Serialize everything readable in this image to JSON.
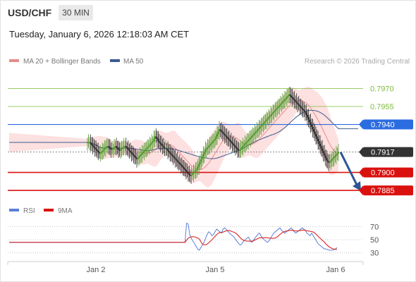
{
  "header": {
    "symbol": "USD/CHF",
    "timeframe": "30 MIN",
    "timestamp": "Tuesday, January 6, 2026 12:18:03 AM CET"
  },
  "credit": "Research © 2026 Trading Central",
  "colors": {
    "green_level": "#7dbb3a",
    "blue_level": "#2b6de0",
    "red_level": "#d9120f",
    "current": "#333333",
    "ma20": "#e98a8a",
    "ma50": "#3a5b8f",
    "bollinger_fill": "#fde0e0",
    "rsi": "#5b7fd6",
    "rsi_ma": "#d9120f",
    "forecast_arrow": "#2d5596",
    "candle_up": "#4f9b2a",
    "candle_down": "#2f2f2f"
  },
  "chart_data": [
    {
      "type": "candlestick",
      "legend": [
        {
          "name": "MA 20 + Bollinger Bands",
          "color": "#e98a8a"
        },
        {
          "name": "MA 50",
          "color": "#3a5b8f"
        }
      ],
      "x_ticks": [
        "Jan 2",
        "Jan 5",
        "Jan 6"
      ],
      "levels": [
        {
          "value": 0.797,
          "label": "0.7970",
          "kind": "resistance-minor",
          "color": "#7dbb3a"
        },
        {
          "value": 0.7955,
          "label": "0.7955",
          "kind": "resistance-minor",
          "color": "#7dbb3a"
        },
        {
          "value": 0.794,
          "label": "0.7940",
          "kind": "resistance",
          "color": "#2b6de0"
        },
        {
          "value": 0.7917,
          "label": "0.7917",
          "kind": "current",
          "color": "#333333"
        },
        {
          "value": 0.79,
          "label": "0.7900",
          "kind": "support",
          "color": "#d9120f"
        },
        {
          "value": 0.7885,
          "label": "0.7885",
          "kind": "support",
          "color": "#d9120f"
        }
      ],
      "ylim": [
        0.7878,
        0.7985
      ],
      "forecast": {
        "from": 0.7917,
        "to": 0.7885,
        "direction": "down"
      },
      "closes": [
        0.7925,
        0.7925,
        0.7925,
        0.7924,
        0.7923,
        0.7922,
        0.7921,
        0.792,
        0.7919,
        0.7918,
        0.7917,
        0.7916,
        0.7916,
        0.7917,
        0.7918,
        0.7919,
        0.792,
        0.7921,
        0.7922,
        0.7922,
        0.7921,
        0.792,
        0.7919,
        0.7919,
        0.792,
        0.7921,
        0.7922,
        0.7921,
        0.792,
        0.7919,
        0.7918,
        0.7919,
        0.792,
        0.7921,
        0.7922,
        0.7922,
        0.7921,
        0.792,
        0.7919,
        0.7918,
        0.7917,
        0.7916,
        0.7915,
        0.7914,
        0.7913,
        0.7912,
        0.7911,
        0.7912,
        0.7913,
        0.7914,
        0.7915,
        0.7916,
        0.7917,
        0.7918,
        0.7919,
        0.792,
        0.7921,
        0.7922,
        0.7923,
        0.7924,
        0.7925,
        0.7926,
        0.7928,
        0.793,
        0.7929,
        0.7928,
        0.7926,
        0.7925,
        0.7924,
        0.7923,
        0.7922,
        0.7921,
        0.792,
        0.792,
        0.7919,
        0.7918,
        0.7917,
        0.7916,
        0.7915,
        0.7914,
        0.7913,
        0.7912,
        0.7911,
        0.791,
        0.7909,
        0.7908,
        0.7907,
        0.7906,
        0.7905,
        0.7904,
        0.7903,
        0.7902,
        0.7901,
        0.79,
        0.7899,
        0.7898,
        0.7897,
        0.7898,
        0.7899,
        0.79,
        0.7901,
        0.7902,
        0.7903,
        0.7905,
        0.7907,
        0.7909,
        0.7911,
        0.7913,
        0.7915,
        0.7917,
        0.7919,
        0.792,
        0.7921,
        0.7922,
        0.7923,
        0.7924,
        0.7925,
        0.7926,
        0.7927,
        0.7928,
        0.793,
        0.7932,
        0.7934,
        0.7936,
        0.7935,
        0.7934,
        0.7933,
        0.7932,
        0.7931,
        0.793,
        0.7929,
        0.7928,
        0.7927,
        0.7926,
        0.7925,
        0.7924,
        0.7923,
        0.7922,
        0.7921,
        0.792,
        0.7919,
        0.7918,
        0.7919,
        0.792,
        0.7921,
        0.7922,
        0.7923,
        0.7924,
        0.7925,
        0.7926,
        0.7927,
        0.7928,
        0.7929,
        0.793,
        0.7931,
        0.7932,
        0.7933,
        0.7934,
        0.7935,
        0.7936,
        0.7937,
        0.7938,
        0.7939,
        0.794,
        0.7941,
        0.7942,
        0.7943,
        0.7944,
        0.7945,
        0.7946,
        0.7947,
        0.7948,
        0.7949,
        0.795,
        0.7951,
        0.7952,
        0.7953,
        0.7954,
        0.7955,
        0.7956,
        0.7957,
        0.7958,
        0.7959,
        0.796,
        0.7961,
        0.7962,
        0.7963,
        0.7964,
        0.7965,
        0.7964,
        0.7963,
        0.7962,
        0.7961,
        0.796,
        0.7959,
        0.7958,
        0.7957,
        0.7956,
        0.7955,
        0.7954,
        0.7953,
        0.7952,
        0.7951,
        0.795,
        0.7948,
        0.7946,
        0.7944,
        0.7942,
        0.794,
        0.7938,
        0.7936,
        0.7934,
        0.7932,
        0.793,
        0.7928,
        0.7926,
        0.7924,
        0.7922,
        0.792,
        0.7918,
        0.7916,
        0.7914,
        0.7912,
        0.791,
        0.7909,
        0.7908,
        0.7909,
        0.791,
        0.7911,
        0.7912,
        0.7913,
        0.7914,
        0.7915,
        0.7916,
        0.7917
      ]
    },
    {
      "type": "line",
      "title": "RSI",
      "legend": [
        {
          "name": "RSI",
          "color": "#5b7fd6"
        },
        {
          "name": "9MA",
          "color": "#d9120f"
        }
      ],
      "y_ticks": [
        70,
        50,
        30
      ],
      "ylim": [
        20,
        80
      ],
      "rsi": [
        46,
        46,
        46,
        46,
        46,
        46,
        46,
        46,
        46,
        46,
        46,
        46,
        46,
        46,
        46,
        46,
        46,
        46,
        46,
        46,
        46,
        46,
        46,
        46,
        46,
        46,
        46,
        46,
        46,
        46,
        46,
        46,
        46,
        46,
        46,
        46,
        46,
        46,
        46,
        46,
        46,
        46,
        46,
        46,
        46,
        46,
        46,
        46,
        46,
        46,
        46,
        46,
        46,
        46,
        46,
        46,
        46,
        46,
        46,
        46,
        46,
        46,
        46,
        46,
        46,
        46,
        46,
        46,
        46,
        46,
        46,
        46,
        46,
        46,
        46,
        46,
        46,
        46,
        46,
        46,
        46,
        46,
        46,
        46,
        46,
        46,
        46,
        46,
        46,
        46,
        46,
        46,
        46,
        46,
        46,
        46,
        46,
        46,
        46,
        46,
        46,
        46,
        46,
        46,
        46,
        46,
        46,
        46,
        46,
        46,
        46,
        46,
        75,
        74,
        58,
        52,
        48,
        44,
        40,
        36,
        34,
        38,
        42,
        46,
        52,
        58,
        62,
        60,
        56,
        58,
        62,
        66,
        64,
        62,
        60,
        66,
        68,
        66,
        63,
        60,
        58,
        56,
        54,
        50,
        47,
        44,
        42,
        44,
        48,
        50,
        52,
        54,
        50,
        46,
        48,
        52,
        55,
        58,
        60,
        56,
        52,
        50,
        48,
        46,
        48,
        52,
        56,
        60,
        62,
        64,
        66,
        68,
        64,
        62,
        60,
        62,
        64,
        66,
        68,
        65,
        62,
        60,
        62,
        64,
        66,
        68,
        66,
        64,
        60,
        58,
        56,
        60,
        56,
        52,
        48,
        44,
        42,
        40,
        38,
        36,
        36,
        35,
        34,
        34,
        34,
        35,
        36,
        38
      ]
    }
  ]
}
